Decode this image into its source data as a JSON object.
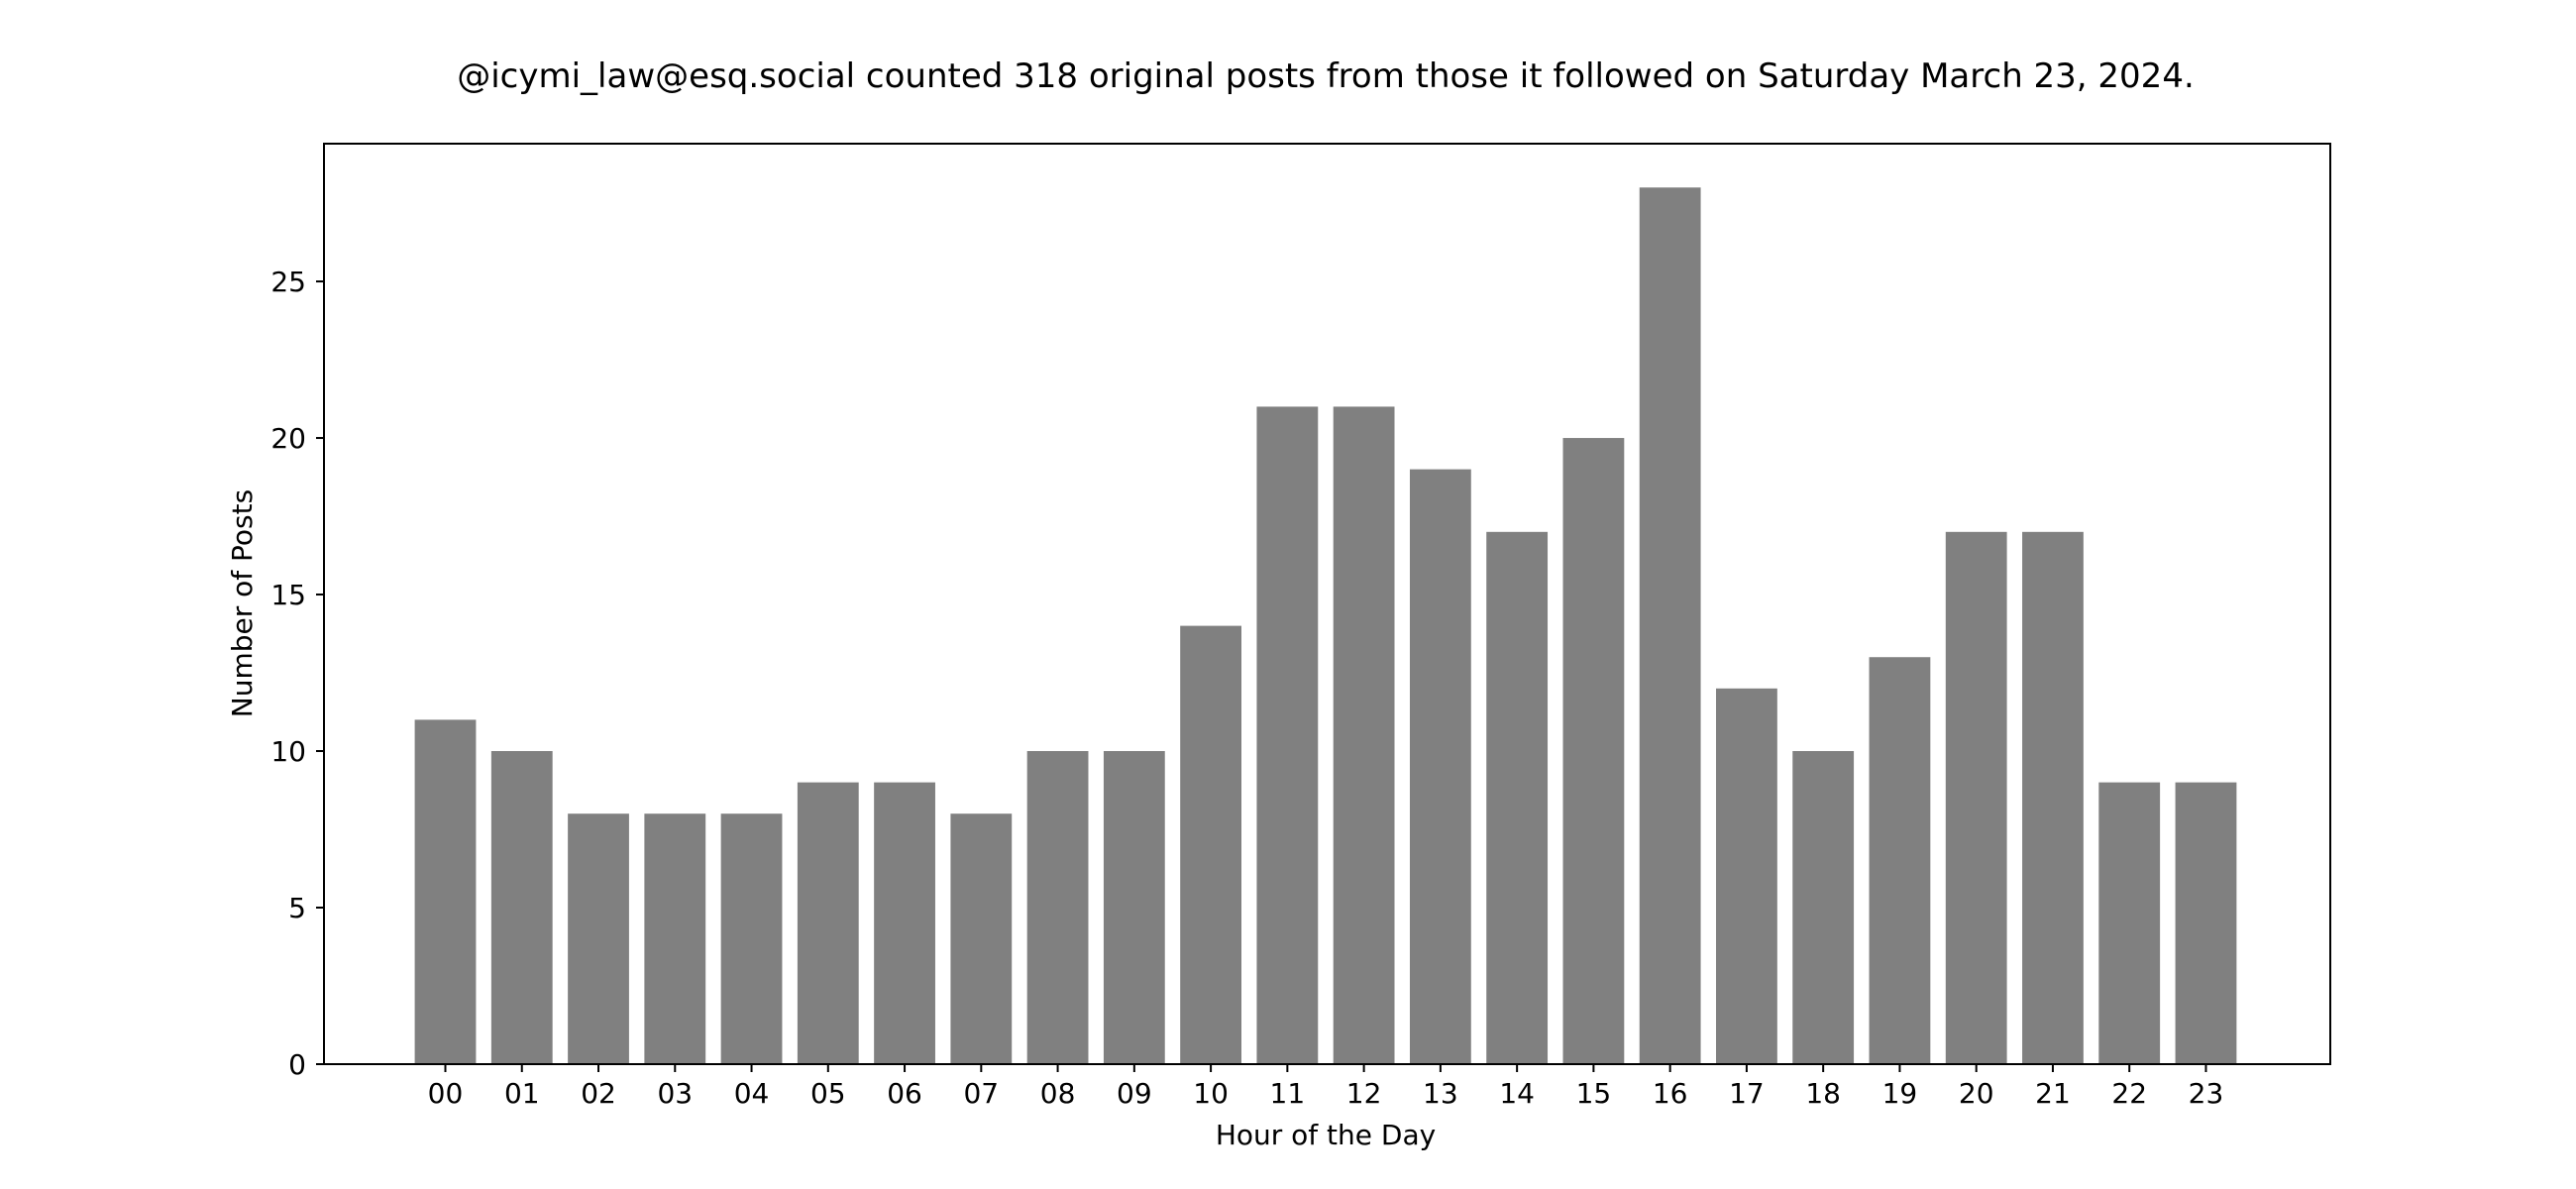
{
  "chart_data": {
    "type": "bar",
    "title": "@icymi_law@esq.social counted 318 original posts from those it followed on Saturday March 23, 2024.",
    "xlabel": "Hour of the Day",
    "ylabel": "Number of Posts",
    "categories": [
      "00",
      "01",
      "02",
      "03",
      "04",
      "05",
      "06",
      "07",
      "08",
      "09",
      "10",
      "11",
      "12",
      "13",
      "14",
      "15",
      "16",
      "17",
      "18",
      "19",
      "20",
      "21",
      "22",
      "23"
    ],
    "values": [
      11,
      10,
      8,
      8,
      8,
      9,
      9,
      8,
      10,
      10,
      14,
      21,
      21,
      19,
      17,
      20,
      28,
      12,
      10,
      13,
      17,
      17,
      9,
      9
    ],
    "ylim": [
      0,
      29.4
    ],
    "yticks": [
      0,
      5,
      10,
      15,
      20,
      25
    ],
    "grid": false,
    "bar_color": "#808080"
  }
}
